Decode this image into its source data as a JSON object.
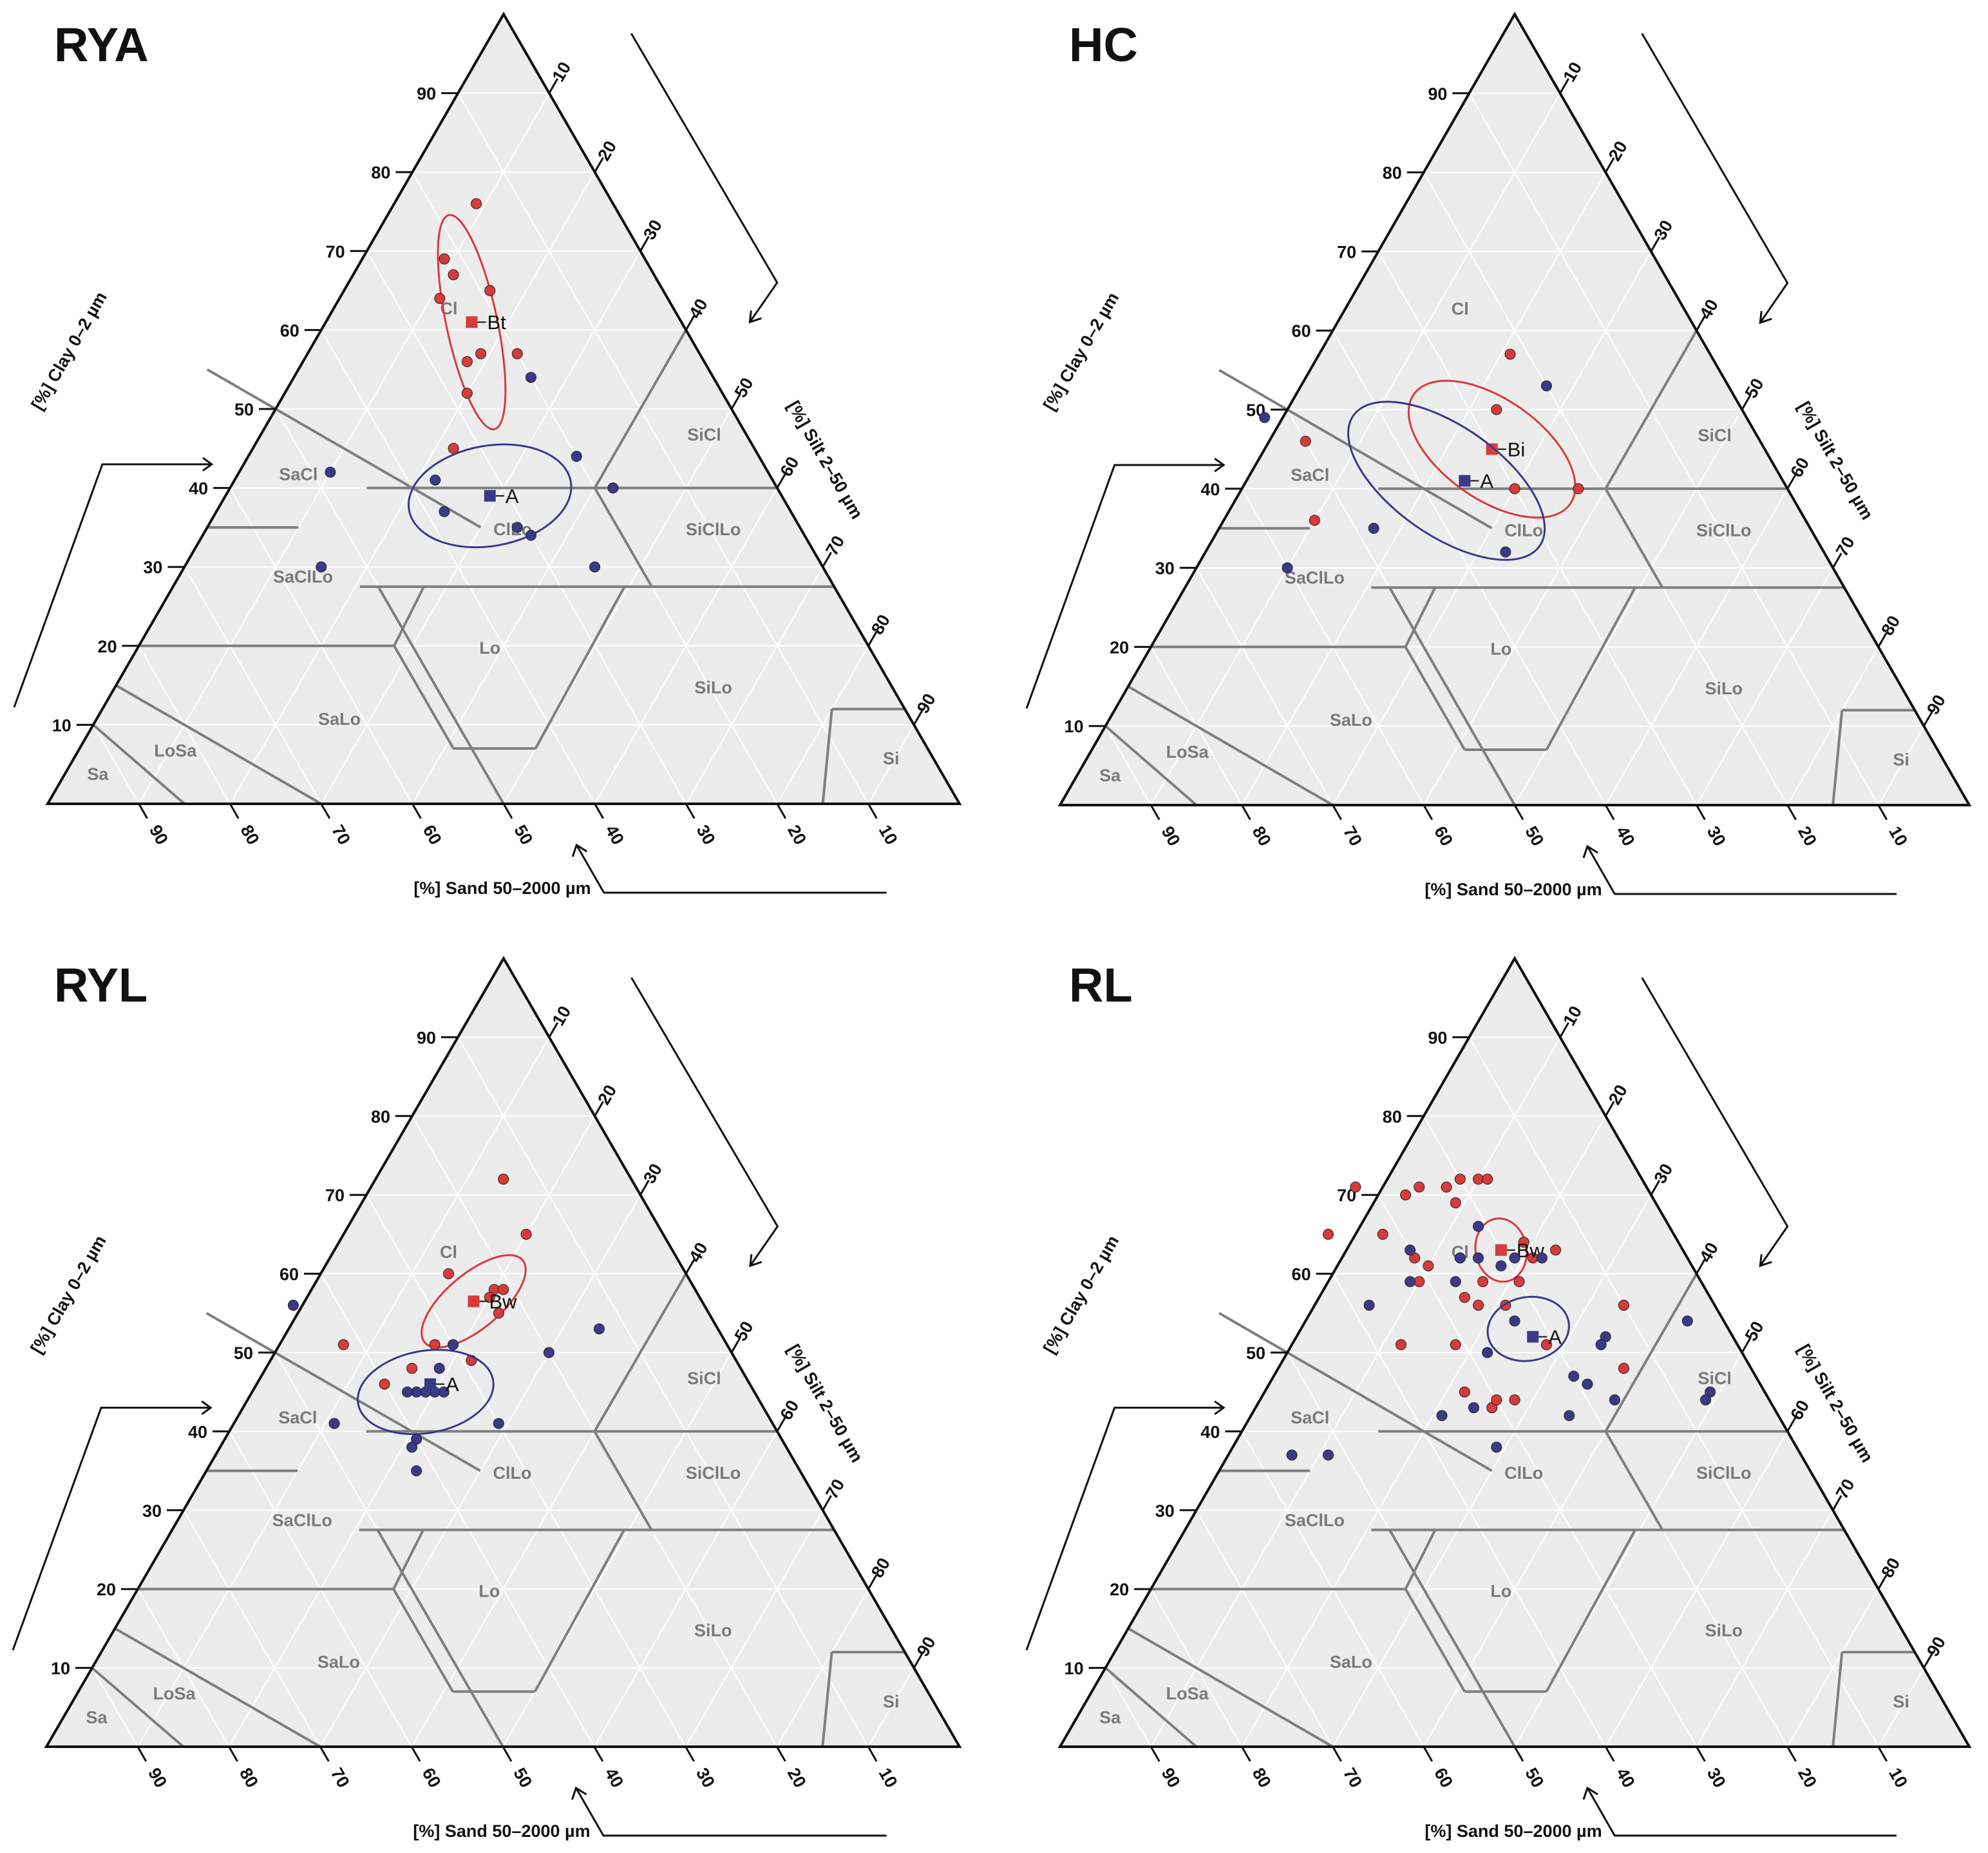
{
  "chart_data": [
    {
      "type": "scatter",
      "subtype": "ternary-soil-texture",
      "title": "RYA",
      "axis_titles": {
        "clay": "[%] Clay 0–2 µm",
        "silt": "[%] Silt 2–50 µm",
        "sand": "[%] Sand 50–2000 µm"
      },
      "ticks": [
        "10",
        "20",
        "30",
        "40",
        "50",
        "60",
        "70",
        "80",
        "90"
      ],
      "regions": [
        {
          "label": "Cl",
          "sand": 25,
          "clay": 62
        },
        {
          "label": "SiCl",
          "sand": 5,
          "clay": 46
        },
        {
          "label": "SaCl",
          "sand": 52,
          "clay": 41
        },
        {
          "label": "SaClLo",
          "sand": 58,
          "clay": 28
        },
        {
          "label": "ClLo",
          "sand": 32,
          "clay": 34
        },
        {
          "label": "SiClLo",
          "sand": 10,
          "clay": 34
        },
        {
          "label": "Lo",
          "sand": 42,
          "clay": 19
        },
        {
          "label": "SiLo",
          "sand": 20,
          "clay": 14
        },
        {
          "label": "SaLo",
          "sand": 63,
          "clay": 10
        },
        {
          "label": "LoSa",
          "sand": 83,
          "clay": 6
        },
        {
          "label": "Sa",
          "sand": 93,
          "clay": 3
        },
        {
          "label": "Si",
          "sand": 5,
          "clay": 5
        }
      ],
      "series": [
        {
          "name": "Bt",
          "color": "#d93a3a",
          "points": [
            {
              "sand": 15,
              "clay": 76
            },
            {
              "sand": 22,
              "clay": 69
            },
            {
              "sand": 22,
              "clay": 67
            },
            {
              "sand": 25,
              "clay": 64
            },
            {
              "sand": 19,
              "clay": 65
            },
            {
              "sand": 26,
              "clay": 56
            },
            {
              "sand": 24,
              "clay": 57
            },
            {
              "sand": 20,
              "clay": 57
            },
            {
              "sand": 28,
              "clay": 52
            },
            {
              "sand": 33,
              "clay": 45
            }
          ],
          "mean": {
            "sand": 23,
            "clay": 61,
            "label": "Bt"
          },
          "ellipse": {
            "sand": 23,
            "clay": 61,
            "rx": 2.8,
            "ry": 12,
            "angle": -12
          }
        },
        {
          "name": "A",
          "color": "#3a3a8a",
          "points": [
            {
              "sand": 20,
              "clay": 54
            },
            {
              "sand": 48,
              "clay": 42
            },
            {
              "sand": 37,
              "clay": 41
            },
            {
              "sand": 38,
              "clay": 37
            },
            {
              "sand": 31,
              "clay": 35
            },
            {
              "sand": 30,
              "clay": 34
            },
            {
              "sand": 20,
              "clay": 44
            },
            {
              "sand": 18,
              "clay": 40
            },
            {
              "sand": 25,
              "clay": 30
            },
            {
              "sand": 55,
              "clay": 30
            }
          ],
          "mean": {
            "sand": 32,
            "clay": 39,
            "label": "A"
          },
          "ellipse": {
            "sand": 32,
            "clay": 39,
            "rx": 9,
            "ry": 5.5,
            "angle": -10
          }
        }
      ]
    },
    {
      "type": "scatter",
      "subtype": "ternary-soil-texture",
      "title": "HC",
      "axis_titles": {
        "clay": "[%] Clay 0–2 µm",
        "silt": "[%] Silt 2–50 µm",
        "sand": "[%] Sand 50–2000 µm"
      },
      "ticks": [
        "10",
        "20",
        "30",
        "40",
        "50",
        "60",
        "70",
        "80",
        "90"
      ],
      "regions": [
        {
          "label": "Cl",
          "sand": 25,
          "clay": 62
        },
        {
          "label": "SiCl",
          "sand": 5,
          "clay": 46
        },
        {
          "label": "SaCl",
          "sand": 52,
          "clay": 41
        },
        {
          "label": "SaClLo",
          "sand": 58,
          "clay": 28
        },
        {
          "label": "ClLo",
          "sand": 32,
          "clay": 34
        },
        {
          "label": "SiClLo",
          "sand": 10,
          "clay": 34
        },
        {
          "label": "Lo",
          "sand": 42,
          "clay": 19
        },
        {
          "label": "SiLo",
          "sand": 20,
          "clay": 14
        },
        {
          "label": "SaLo",
          "sand": 63,
          "clay": 10
        },
        {
          "label": "LoSa",
          "sand": 83,
          "clay": 6
        },
        {
          "label": "Sa",
          "sand": 93,
          "clay": 3
        },
        {
          "label": "Si",
          "sand": 5,
          "clay": 5
        }
      ],
      "series": [
        {
          "name": "Bi",
          "color": "#d93a3a",
          "points": [
            {
              "sand": 22,
              "clay": 57
            },
            {
              "sand": 27,
              "clay": 50
            },
            {
              "sand": 50,
              "clay": 46
            },
            {
              "sand": 30,
              "clay": 40
            },
            {
              "sand": 23,
              "clay": 40
            },
            {
              "sand": 54,
              "clay": 36
            }
          ],
          "mean": {
            "sand": 30,
            "clay": 45,
            "label": "Bi"
          },
          "ellipse": {
            "sand": 30,
            "clay": 45,
            "rx": 10.5,
            "ry": 5.5,
            "angle": 35
          }
        },
        {
          "name": "A",
          "color": "#3a3a8a",
          "points": [
            {
              "sand": 20,
              "clay": 53
            },
            {
              "sand": 53,
              "clay": 49
            },
            {
              "sand": 35,
              "clay": 41
            },
            {
              "sand": 48,
              "clay": 35
            },
            {
              "sand": 35,
              "clay": 32
            },
            {
              "sand": 60,
              "clay": 30
            }
          ],
          "mean": {
            "sand": 35,
            "clay": 41,
            "label": "A"
          },
          "ellipse": {
            "sand": 37,
            "clay": 41,
            "rx": 12.5,
            "ry": 6,
            "angle": 35
          }
        }
      ]
    },
    {
      "type": "scatter",
      "subtype": "ternary-soil-texture",
      "title": "RYL",
      "axis_titles": {
        "clay": "[%] Clay 0–2 µm",
        "silt": "[%] Silt 2–50 µm",
        "sand": "[%] Sand 50–2000 µm"
      },
      "ticks": [
        "10",
        "20",
        "30",
        "40",
        "50",
        "60",
        "70",
        "80",
        "90"
      ],
      "regions": [
        {
          "label": "Cl",
          "sand": 25,
          "clay": 62
        },
        {
          "label": "SiCl",
          "sand": 5,
          "clay": 46
        },
        {
          "label": "SaCl",
          "sand": 52,
          "clay": 41
        },
        {
          "label": "SaClLo",
          "sand": 58,
          "clay": 28
        },
        {
          "label": "ClLo",
          "sand": 32,
          "clay": 34
        },
        {
          "label": "SiClLo",
          "sand": 10,
          "clay": 34
        },
        {
          "label": "Lo",
          "sand": 42,
          "clay": 19
        },
        {
          "label": "SiLo",
          "sand": 20,
          "clay": 14
        },
        {
          "label": "SaLo",
          "sand": 63,
          "clay": 10
        },
        {
          "label": "LoSa",
          "sand": 83,
          "clay": 6
        },
        {
          "label": "Sa",
          "sand": 93,
          "clay": 3
        },
        {
          "label": "Si",
          "sand": 5,
          "clay": 5
        }
      ],
      "series": [
        {
          "name": "Bw",
          "color": "#d93a3a",
          "points": [
            {
              "sand": 14,
              "clay": 72
            },
            {
              "sand": 15,
              "clay": 65
            },
            {
              "sand": 26,
              "clay": 60
            },
            {
              "sand": 22,
              "clay": 58
            },
            {
              "sand": 23,
              "clay": 57
            },
            {
              "sand": 23,
              "clay": 55
            },
            {
              "sand": 32,
              "clay": 51
            },
            {
              "sand": 29,
              "clay": 49
            },
            {
              "sand": 36,
              "clay": 48
            },
            {
              "sand": 40,
              "clay": 46
            },
            {
              "sand": 21,
              "clay": 58
            },
            {
              "sand": 42,
              "clay": 51
            }
          ],
          "mean": {
            "sand": 25,
            "clay": 56.5,
            "label": "Bw"
          },
          "ellipse": {
            "sand": 25,
            "clay": 56.5,
            "rx": 7,
            "ry": 3,
            "angle": -40
          }
        },
        {
          "name": "A",
          "color": "#3a3a8a",
          "points": [
            {
              "sand": 13,
              "clay": 53
            },
            {
              "sand": 20,
              "clay": 50
            },
            {
              "sand": 45,
              "clay": 56
            },
            {
              "sand": 30,
              "clay": 51
            },
            {
              "sand": 33,
              "clay": 48
            },
            {
              "sand": 34,
              "clay": 45
            },
            {
              "sand": 35,
              "clay": 45
            },
            {
              "sand": 36,
              "clay": 45
            },
            {
              "sand": 37,
              "clay": 45
            },
            {
              "sand": 38,
              "clay": 45
            },
            {
              "sand": 30,
              "clay": 41
            },
            {
              "sand": 40,
              "clay": 39
            },
            {
              "sand": 41,
              "clay": 38
            },
            {
              "sand": 42,
              "clay": 35
            },
            {
              "sand": 48,
              "clay": 41
            }
          ],
          "mean": {
            "sand": 35,
            "clay": 46,
            "label": "A"
          },
          "ellipse": {
            "sand": 36,
            "clay": 45,
            "rx": 7.5,
            "ry": 4.5,
            "angle": -10
          }
        }
      ]
    },
    {
      "type": "scatter",
      "subtype": "ternary-soil-texture",
      "title": "RL",
      "axis_titles": {
        "clay": "[%] Clay 0–2 µm",
        "silt": "[%] Silt 2–50 µm",
        "sand": "[%] Sand 50–2000 µm"
      },
      "ticks": [
        "10",
        "20",
        "30",
        "40",
        "50",
        "60",
        "70",
        "80",
        "90"
      ],
      "regions": [
        {
          "label": "Cl",
          "sand": 25,
          "clay": 62
        },
        {
          "label": "SiCl",
          "sand": 5,
          "clay": 46
        },
        {
          "label": "SaCl",
          "sand": 52,
          "clay": 41
        },
        {
          "label": "SaClLo",
          "sand": 58,
          "clay": 28
        },
        {
          "label": "ClLo",
          "sand": 32,
          "clay": 34
        },
        {
          "label": "SiClLo",
          "sand": 10,
          "clay": 34
        },
        {
          "label": "Lo",
          "sand": 42,
          "clay": 19
        },
        {
          "label": "SiLo",
          "sand": 20,
          "clay": 14
        },
        {
          "label": "SaLo",
          "sand": 63,
          "clay": 10
        },
        {
          "label": "LoSa",
          "sand": 83,
          "clay": 6
        },
        {
          "label": "Sa",
          "sand": 93,
          "clay": 3
        },
        {
          "label": "Si",
          "sand": 5,
          "clay": 5
        }
      ],
      "series": [
        {
          "name": "Bw",
          "color": "#d93a3a",
          "points": [
            {
              "sand": 20,
              "clay": 72
            },
            {
              "sand": 18,
              "clay": 72
            },
            {
              "sand": 17,
              "clay": 72
            },
            {
              "sand": 22,
              "clay": 71
            },
            {
              "sand": 25,
              "clay": 71
            },
            {
              "sand": 27,
              "clay": 70
            },
            {
              "sand": 32,
              "clay": 71
            },
            {
              "sand": 22,
              "clay": 69
            },
            {
              "sand": 32,
              "clay": 65
            },
            {
              "sand": 25,
              "clay": 62
            },
            {
              "sand": 30,
              "clay": 62
            },
            {
              "sand": 31,
              "clay": 59
            },
            {
              "sand": 24,
              "clay": 59
            },
            {
              "sand": 17,
              "clay": 64
            },
            {
              "sand": 17,
              "clay": 62
            },
            {
              "sand": 14,
              "clay": 63
            },
            {
              "sand": 29,
              "clay": 61
            },
            {
              "sand": 26,
              "clay": 56
            },
            {
              "sand": 27,
              "clay": 57
            },
            {
              "sand": 31,
              "clay": 51
            },
            {
              "sand": 23,
              "clay": 56
            },
            {
              "sand": 10,
              "clay": 56
            },
            {
              "sand": 21,
              "clay": 51
            },
            {
              "sand": 14,
              "clay": 48
            },
            {
              "sand": 33,
              "clay": 45
            },
            {
              "sand": 31,
              "clay": 43
            },
            {
              "sand": 30,
              "clay": 44
            },
            {
              "sand": 28,
              "clay": 44
            },
            {
              "sand": 38,
              "clay": 65
            },
            {
              "sand": 20,
              "clay": 59
            },
            {
              "sand": 37,
              "clay": 51
            }
          ],
          "mean": {
            "sand": 20,
            "clay": 63,
            "label": "Bw"
          },
          "ellipse": {
            "sand": 20,
            "clay": 63,
            "rx": 2.8,
            "ry": 3.5,
            "angle": -10
          }
        },
        {
          "name": "A",
          "color": "#3a3a8a",
          "points": [
            {
              "sand": 21,
              "clay": 66
            },
            {
              "sand": 30,
              "clay": 63
            },
            {
              "sand": 25,
              "clay": 62
            },
            {
              "sand": 23,
              "clay": 62
            },
            {
              "sand": 16,
              "clay": 62
            },
            {
              "sand": 21,
              "clay": 61
            },
            {
              "sand": 19,
              "clay": 62
            },
            {
              "sand": 27,
              "clay": 59
            },
            {
              "sand": 32,
              "clay": 59
            },
            {
              "sand": 38,
              "clay": 56
            },
            {
              "sand": 14,
              "clay": 52
            },
            {
              "sand": 15,
              "clay": 51
            },
            {
              "sand": 23,
              "clay": 54
            },
            {
              "sand": 28,
              "clay": 50
            },
            {
              "sand": 20,
              "clay": 47
            },
            {
              "sand": 19,
              "clay": 46
            },
            {
              "sand": 17,
              "clay": 44
            },
            {
              "sand": 4,
              "clay": 54
            },
            {
              "sand": 33,
              "clay": 43
            },
            {
              "sand": 37,
              "clay": 42
            },
            {
              "sand": 6,
              "clay": 45
            },
            {
              "sand": 7,
              "clay": 44
            },
            {
              "sand": 23,
              "clay": 42
            },
            {
              "sand": 33,
              "clay": 38
            },
            {
              "sand": 52,
              "clay": 37
            },
            {
              "sand": 56,
              "clay": 37
            }
          ],
          "mean": {
            "sand": 22,
            "clay": 52,
            "label": "A"
          },
          "ellipse": {
            "sand": 22,
            "clay": 53,
            "rx": 4.5,
            "ry": 3.5,
            "angle": -10
          }
        }
      ]
    }
  ]
}
